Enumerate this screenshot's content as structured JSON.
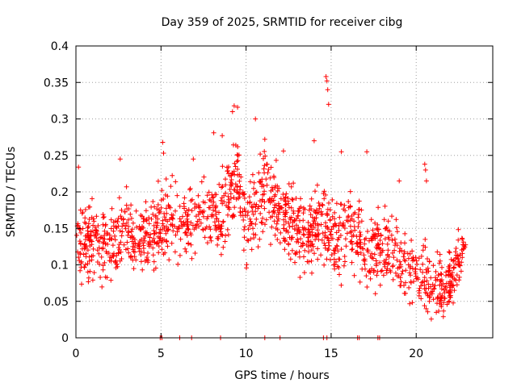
{
  "chart_data": {
    "type": "scatter",
    "title": "Day 359 of 2025, SRMTID for receiver cibg",
    "xlabel": "GPS time / hours",
    "ylabel": "SRMTID / TECUs",
    "xlim": [
      0,
      24.5
    ],
    "ylim": [
      0,
      0.4
    ],
    "x_ticks": [
      0,
      5,
      10,
      15,
      20
    ],
    "x_tick_labels": [
      "0",
      "5",
      "10",
      "15",
      "20"
    ],
    "y_ticks": [
      0,
      0.05,
      0.1,
      0.15,
      0.2,
      0.25,
      0.3,
      0.35,
      0.4
    ],
    "y_tick_labels": [
      "0",
      "0.05",
      "0.1",
      "0.15",
      "0.2",
      "0.25",
      "0.3",
      "0.35",
      "0.4"
    ],
    "grid": true,
    "marker": "+",
    "series": [
      {
        "name": "SRMTID",
        "color": "#ff0000",
        "envelope": {
          "hours": [
            0.0,
            0.5,
            1.0,
            1.5,
            2.0,
            2.5,
            3.0,
            3.5,
            4.0,
            4.5,
            5.0,
            5.5,
            6.0,
            6.5,
            7.0,
            7.5,
            8.0,
            8.5,
            9.0,
            9.5,
            10.0,
            10.5,
            11.0,
            11.5,
            12.0,
            12.5,
            13.0,
            13.5,
            14.0,
            14.5,
            15.0,
            15.5,
            16.0,
            16.5,
            17.0,
            17.5,
            18.0,
            18.5,
            19.0,
            19.5,
            20.0,
            20.5,
            21.0,
            21.5,
            22.0,
            22.5,
            22.9
          ],
          "center": [
            0.13,
            0.135,
            0.13,
            0.13,
            0.12,
            0.14,
            0.15,
            0.13,
            0.14,
            0.145,
            0.15,
            0.165,
            0.16,
            0.15,
            0.17,
            0.16,
            0.17,
            0.165,
            0.2,
            0.225,
            0.16,
            0.17,
            0.19,
            0.2,
            0.17,
            0.16,
            0.15,
            0.14,
            0.15,
            0.16,
            0.14,
            0.135,
            0.15,
            0.13,
            0.12,
            0.11,
            0.13,
            0.12,
            0.11,
            0.1,
            0.09,
            0.09,
            0.07,
            0.065,
            0.08,
            0.11,
            0.12
          ],
          "spread": [
            0.045,
            0.045,
            0.045,
            0.045,
            0.045,
            0.045,
            0.045,
            0.045,
            0.045,
            0.045,
            0.045,
            0.05,
            0.045,
            0.045,
            0.045,
            0.045,
            0.05,
            0.05,
            0.05,
            0.055,
            0.055,
            0.055,
            0.05,
            0.05,
            0.045,
            0.045,
            0.045,
            0.045,
            0.045,
            0.05,
            0.045,
            0.045,
            0.045,
            0.045,
            0.045,
            0.045,
            0.045,
            0.045,
            0.04,
            0.04,
            0.04,
            0.04,
            0.035,
            0.035,
            0.035,
            0.035,
            0.035
          ],
          "point_count": 1500
        },
        "notable_points": [
          [
            0.15,
            0.234
          ],
          [
            2.6,
            0.245
          ],
          [
            5.1,
            0.268
          ],
          [
            5.15,
            0.253
          ],
          [
            6.9,
            0.245
          ],
          [
            8.1,
            0.281
          ],
          [
            8.6,
            0.277
          ],
          [
            9.2,
            0.31
          ],
          [
            9.3,
            0.318
          ],
          [
            9.5,
            0.316
          ],
          [
            10.55,
            0.3
          ],
          [
            11.1,
            0.272
          ],
          [
            12.2,
            0.256
          ],
          [
            14.0,
            0.27
          ],
          [
            14.7,
            0.358
          ],
          [
            14.75,
            0.352
          ],
          [
            14.8,
            0.34
          ],
          [
            14.85,
            0.32
          ],
          [
            15.6,
            0.255
          ],
          [
            17.1,
            0.255
          ],
          [
            19.0,
            0.215
          ],
          [
            20.5,
            0.238
          ],
          [
            20.55,
            0.23
          ],
          [
            20.6,
            0.215
          ]
        ],
        "zero_points": [
          4.95,
          5.05,
          6.1,
          6.8,
          8.5,
          11.1,
          12.0,
          14.55,
          14.75,
          16.55,
          16.65,
          17.75,
          17.85
        ]
      }
    ]
  }
}
